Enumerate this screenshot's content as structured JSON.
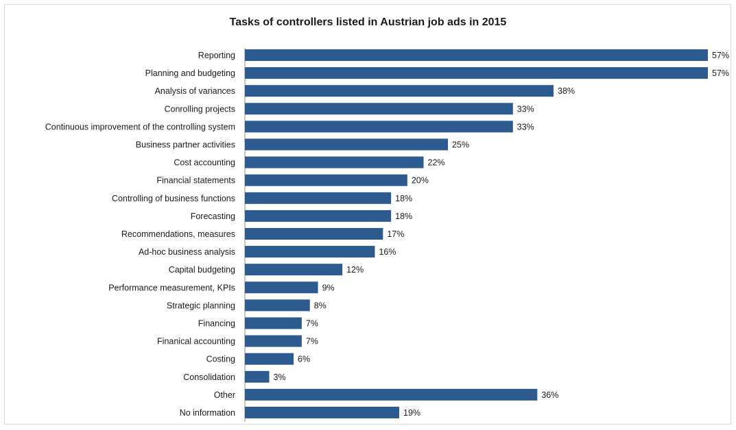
{
  "chart_data": {
    "type": "bar",
    "orientation": "horizontal",
    "title": "Tasks of controllers listed in Austrian job ads in 2015",
    "xlabel": "",
    "ylabel": "",
    "value_suffix": "%",
    "bar_color": "#2e5b8f",
    "categories": [
      "Reporting",
      "Planning and budgeting",
      "Analysis of variances",
      "Conrolling projects",
      "Continuous improvement  of the controlling system",
      "Business partner activities",
      "Cost accounting",
      "Financial statements",
      "Controlling of business functions",
      "Forecasting",
      "Recommendations, measures",
      "Ad-hoc business analysis",
      "Capital budgeting",
      "Performance measurement, KPIs",
      "Strategic planning",
      "Financing",
      "Finanical accounting",
      "Costing",
      "Consolidation",
      "Other",
      "No information"
    ],
    "values": [
      57,
      57,
      38,
      33,
      33,
      25,
      22,
      20,
      18,
      18,
      17,
      16,
      12,
      9,
      8,
      7,
      7,
      6,
      3,
      36,
      19
    ],
    "xlim": [
      0,
      57
    ],
    "grid": false,
    "legend": "none"
  }
}
